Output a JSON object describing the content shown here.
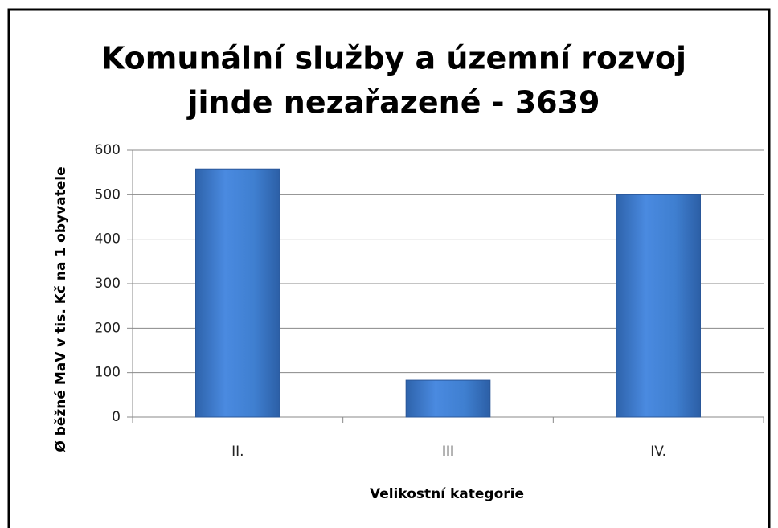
{
  "chart_data": {
    "type": "bar",
    "title": [
      "Komunální služby a územní rozvoj",
      "jinde nezařazené - 3639"
    ],
    "categories": [
      "II.",
      "III",
      "IV."
    ],
    "values": [
      558,
      83,
      500
    ],
    "color": "#3f7fd0",
    "ylim": [
      0,
      600
    ],
    "yticks": [
      0,
      100,
      200,
      300,
      400,
      500,
      600
    ],
    "grid": true,
    "ylabel": "Ø běžné MaV v tis. Kč na 1 obyvatele",
    "xlabel": "Velikostní kategorie"
  }
}
